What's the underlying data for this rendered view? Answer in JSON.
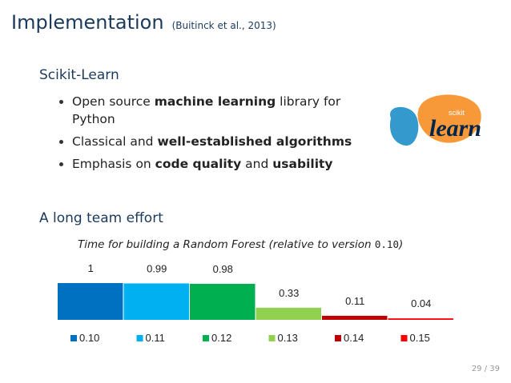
{
  "slide": {
    "title": "Implementation",
    "citation": "(Buitinck et al., 2013)",
    "section1_heading": "Scikit-Learn",
    "section2_heading": "A long team effort",
    "page_number": "29 / 39"
  },
  "bullets": [
    {
      "pre": "Open source ",
      "bold": "machine learning",
      "post": " library for Python",
      "bold2": "",
      "post2": ""
    },
    {
      "pre": "Classical and ",
      "bold": "well-established algorithms",
      "post": "",
      "bold2": "",
      "post2": ""
    },
    {
      "pre": "Emphasis on ",
      "bold": "code quality",
      "post": " and ",
      "bold2": "usability",
      "post2": ""
    }
  ],
  "logo": {
    "top_text": "scikit",
    "main_text": "learn",
    "colors": {
      "blue": "#3499cd",
      "orange": "#f89939",
      "text": "#01254a"
    }
  },
  "chart_data": {
    "type": "bar",
    "title_text": "Time for building a Random Forest (relative to version",
    "title_version": "0.10",
    "title_close": ")",
    "categories": [
      "0.10",
      "0.11",
      "0.12",
      "0.13",
      "0.14",
      "0.15"
    ],
    "values": [
      1,
      0.99,
      0.98,
      0.33,
      0.11,
      0.04
    ],
    "value_labels": [
      "1",
      "0.99",
      "0.98",
      "0.33",
      "0.11",
      "0.04"
    ],
    "colors": [
      "#0070c0",
      "#00b0f0",
      "#00b050",
      "#92d050",
      "#c00000",
      "#ff0000"
    ],
    "legend_placement": "bottom",
    "ylim": [
      0,
      1
    ],
    "grid": false
  }
}
